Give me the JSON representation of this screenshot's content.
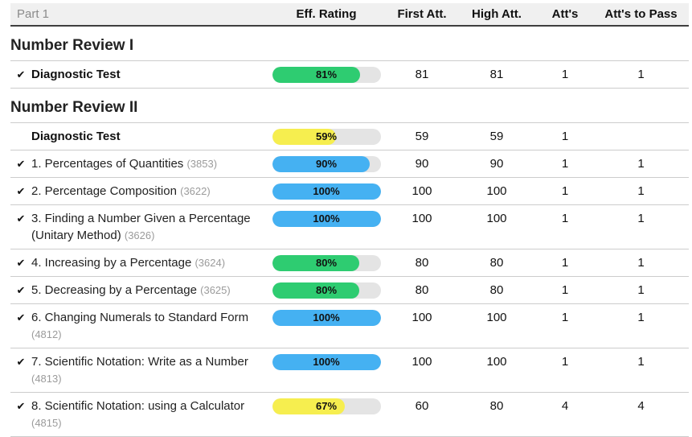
{
  "table_header": {
    "part_label": "Part 1",
    "columns": {
      "rating": "Eff. Rating",
      "first": "First Att.",
      "high": "High Att.",
      "atts": "Att's",
      "pass": "Att's to Pass"
    }
  },
  "colors": {
    "green": "#2ecc71",
    "yellow": "#f6ee4f",
    "blue": "#45b1f2",
    "track": "#e4e4e4"
  },
  "check_icon": "✔",
  "sections": [
    {
      "title": "Number Review I",
      "rows": [
        {
          "checked": true,
          "bold": true,
          "title": "Diagnostic Test",
          "id": "",
          "rating": 81,
          "color": "green",
          "first": "81",
          "high": "81",
          "atts": "1",
          "pass": "1"
        }
      ]
    },
    {
      "title": "Number Review II",
      "rows": [
        {
          "checked": false,
          "bold": true,
          "title": "Diagnostic Test",
          "id": "",
          "rating": 59,
          "color": "yellow",
          "first": "59",
          "high": "59",
          "atts": "1",
          "pass": ""
        },
        {
          "checked": true,
          "bold": false,
          "title": "1. Percentages of Quantities",
          "id": "(3853)",
          "rating": 90,
          "color": "blue",
          "first": "90",
          "high": "90",
          "atts": "1",
          "pass": "1"
        },
        {
          "checked": true,
          "bold": false,
          "title": "2. Percentage Composition",
          "id": "(3622)",
          "rating": 100,
          "color": "blue",
          "first": "100",
          "high": "100",
          "atts": "1",
          "pass": "1"
        },
        {
          "checked": true,
          "bold": false,
          "title": "3. Finding a Number Given a Percentage (Unitary Method)",
          "id": "(3626)",
          "rating": 100,
          "color": "blue",
          "first": "100",
          "high": "100",
          "atts": "1",
          "pass": "1"
        },
        {
          "checked": true,
          "bold": false,
          "title": "4. Increasing by a Percentage",
          "id": "(3624)",
          "rating": 80,
          "color": "green",
          "first": "80",
          "high": "80",
          "atts": "1",
          "pass": "1"
        },
        {
          "checked": true,
          "bold": false,
          "title": "5. Decreasing by a Percentage",
          "id": "(3625)",
          "rating": 80,
          "color": "green",
          "first": "80",
          "high": "80",
          "atts": "1",
          "pass": "1"
        },
        {
          "checked": true,
          "bold": false,
          "title": "6. Changing Numerals to Standard Form",
          "id": "(4812)",
          "rating": 100,
          "color": "blue",
          "first": "100",
          "high": "100",
          "atts": "1",
          "pass": "1"
        },
        {
          "checked": true,
          "bold": false,
          "title": "7. Scientific Notation: Write as a Number",
          "id": "(4813)",
          "rating": 100,
          "color": "blue",
          "first": "100",
          "high": "100",
          "atts": "1",
          "pass": "1"
        },
        {
          "checked": true,
          "bold": false,
          "title": "8. Scientific Notation: using a Calculator",
          "id": "(4815)",
          "rating": 67,
          "color": "yellow",
          "first": "60",
          "high": "80",
          "atts": "4",
          "pass": "4"
        }
      ]
    }
  ]
}
